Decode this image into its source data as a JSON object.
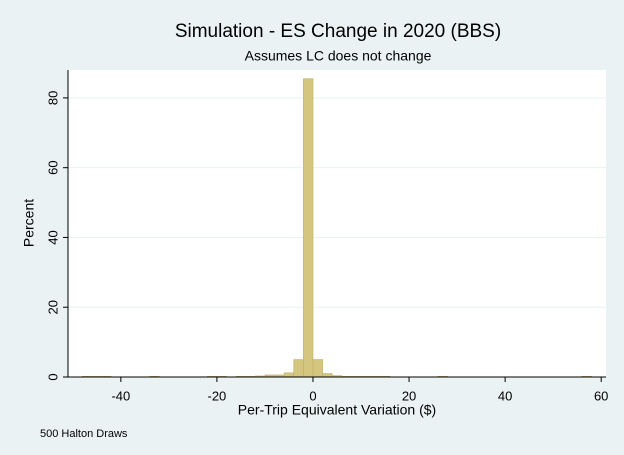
{
  "chart_data": {
    "type": "histogram",
    "title": "Simulation - ES Change in 2020 (BBS)",
    "subtitle": "Assumes LC does not change",
    "x_label": "Per-Trip Equivalent Variation ($)",
    "y_label": "Percent",
    "note": "500 Halton Draws",
    "bins": [
      -48,
      -46,
      -44,
      -42,
      -40,
      -38,
      -36,
      -34,
      -32,
      -30,
      -28,
      -26,
      -24,
      -22,
      -20,
      -18,
      -16,
      -14,
      -12,
      -10,
      -8,
      -6,
      -4,
      -2,
      0,
      2,
      4,
      6,
      8,
      10,
      12,
      14,
      16,
      18,
      20,
      22,
      24,
      26,
      28,
      30,
      32,
      34,
      36,
      38,
      40,
      42,
      44,
      46,
      48,
      50,
      52,
      54,
      56,
      58
    ],
    "values": [
      0.2,
      0.2,
      0.2,
      0,
      0,
      0,
      0,
      0.2,
      0,
      0,
      0,
      0,
      0,
      0.2,
      0.2,
      0,
      0.2,
      0.2,
      0.3,
      0.6,
      0.6,
      1.2,
      5,
      85.5,
      5,
      1,
      0.4,
      0.2,
      0.2,
      0.2,
      0.2,
      0.2,
      0,
      0,
      0,
      0,
      0,
      0.2,
      0,
      0,
      0,
      0,
      0,
      0,
      0,
      0,
      0,
      0,
      0,
      0,
      0,
      0,
      0.2
    ],
    "color": "#d4c67e",
    "xlim": [
      -51,
      61
    ],
    "xticks": [
      -40,
      -20,
      0,
      20,
      40,
      60
    ],
    "ylim": [
      0,
      88
    ],
    "yticks": [
      0,
      20,
      40,
      60,
      80
    ],
    "grid": true
  }
}
